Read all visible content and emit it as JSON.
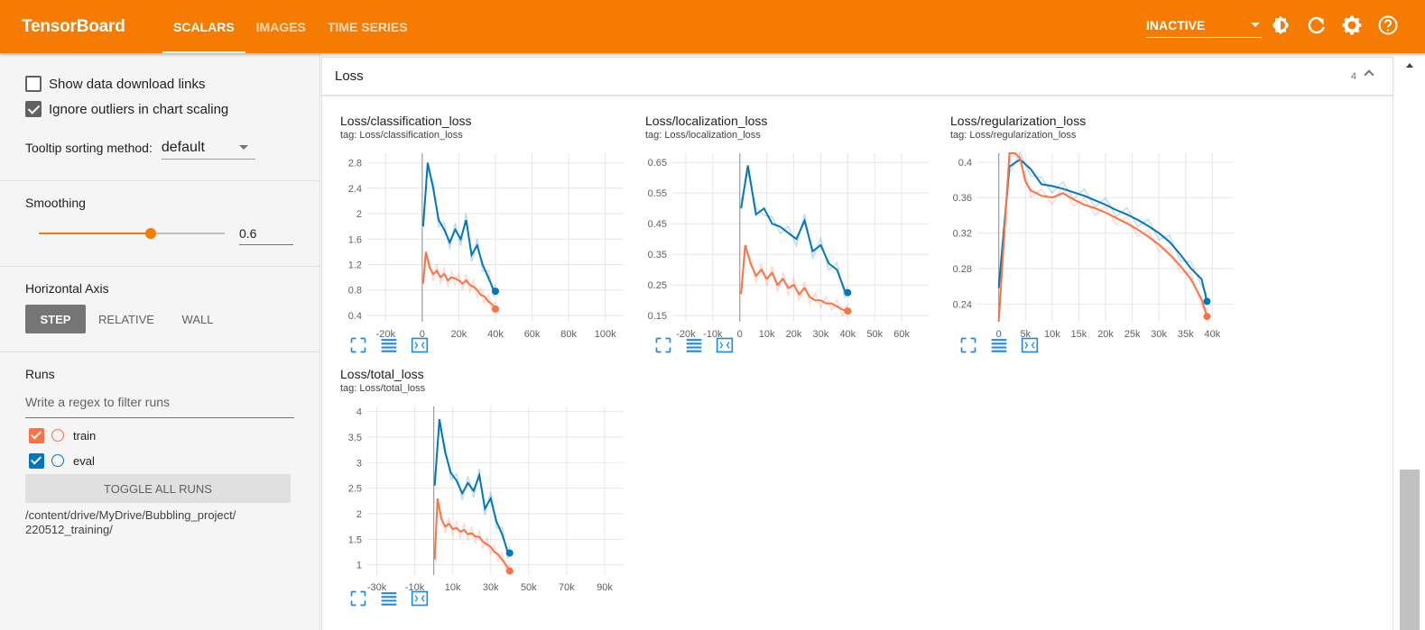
{
  "app": {
    "title": "TensorBoard",
    "tabs": [
      {
        "label": "SCALARS",
        "active": true
      },
      {
        "label": "IMAGES",
        "active": false
      },
      {
        "label": "TIME SERIES",
        "active": false
      }
    ],
    "status_select": "INACTIVE",
    "accent_color": "#f57c00"
  },
  "sidebar": {
    "show_download_links": {
      "label": "Show data download links",
      "checked": false
    },
    "ignore_outliers": {
      "label": "Ignore outliers in chart scaling",
      "checked": true
    },
    "tooltip_sorting": {
      "label": "Tooltip sorting method:",
      "value": "default"
    },
    "smoothing": {
      "label": "Smoothing",
      "value": "0.6",
      "fraction": 0.6
    },
    "horizontal_axis": {
      "label": "Horizontal Axis",
      "options": [
        "STEP",
        "RELATIVE",
        "WALL"
      ],
      "selected": "STEP"
    },
    "runs": {
      "label": "Runs",
      "filter_placeholder": "Write a regex to filter runs",
      "items": [
        {
          "name": "train",
          "checked": true,
          "color": "#ff7043"
        },
        {
          "name": "eval",
          "checked": true,
          "color": "#0077bb"
        }
      ],
      "toggle_label": "TOGGLE ALL RUNS",
      "logdir": "/content/drive/MyDrive/Bubbling_project/\n220512_training/"
    }
  },
  "group": {
    "name": "Loss",
    "count": "4"
  },
  "chart_data": [
    {
      "type": "line",
      "title": "Loss/classification_loss",
      "tag": "tag: Loss/classification_loss",
      "xlim": [
        -30000,
        110000
      ],
      "ylim": [
        0.3,
        2.95
      ],
      "xticks": [
        -20000,
        0,
        20000,
        40000,
        60000,
        80000,
        100000
      ],
      "xtick_labels": [
        "-20k",
        "0",
        "20k",
        "40k",
        "60k",
        "80k",
        "100k"
      ],
      "yticks": [
        0.4,
        0.8,
        1.2,
        1.6,
        2,
        2.4,
        2.8
      ],
      "ytick_labels": [
        "0.4",
        "0.8",
        "1.2",
        "1.6",
        "2",
        "2.4",
        "2.8"
      ],
      "series": [
        {
          "name": "eval",
          "color": "#0077bb",
          "x": [
            500,
            3000,
            6000,
            9000,
            12000,
            15000,
            18000,
            21000,
            24000,
            27000,
            30000,
            33000,
            36000,
            39000,
            40000
          ],
          "y": [
            1.8,
            2.8,
            2.4,
            1.9,
            1.75,
            1.55,
            1.75,
            1.6,
            1.9,
            1.35,
            1.5,
            1.2,
            1.0,
            0.8,
            0.78
          ]
        },
        {
          "name": "train",
          "color": "#ff7043",
          "x": [
            500,
            2000,
            4000,
            6000,
            8000,
            10000,
            12000,
            14000,
            16000,
            18000,
            20000,
            22000,
            24000,
            26000,
            28000,
            30000,
            32000,
            34000,
            36000,
            38000,
            40000
          ],
          "y": [
            0.9,
            1.4,
            1.15,
            1.05,
            1.1,
            1.0,
            1.05,
            0.95,
            1.0,
            0.98,
            0.95,
            0.9,
            0.95,
            0.88,
            0.85,
            0.8,
            0.72,
            0.7,
            0.62,
            0.58,
            0.5
          ]
        }
      ]
    },
    {
      "type": "line",
      "title": "Loss/localization_loss",
      "tag": "tag: Loss/localization_loss",
      "xlim": [
        -25000,
        70000
      ],
      "ylim": [
        0.13,
        0.68
      ],
      "xticks": [
        -20000,
        -10000,
        0,
        10000,
        20000,
        30000,
        40000,
        50000,
        60000
      ],
      "xtick_labels": [
        "-20k",
        "-10k",
        "0",
        "10k",
        "20k",
        "30k",
        "40k",
        "50k",
        "60k"
      ],
      "yticks": [
        0.15,
        0.25,
        0.35,
        0.45,
        0.55,
        0.65
      ],
      "ytick_labels": [
        "0.15",
        "0.25",
        "0.35",
        "0.45",
        "0.55",
        "0.65"
      ],
      "series": [
        {
          "name": "eval",
          "color": "#0077bb",
          "x": [
            500,
            3000,
            6000,
            9000,
            12000,
            15000,
            18000,
            21000,
            24000,
            27000,
            30000,
            33000,
            36000,
            39000,
            40000
          ],
          "y": [
            0.5,
            0.64,
            0.48,
            0.5,
            0.45,
            0.44,
            0.42,
            0.4,
            0.46,
            0.36,
            0.38,
            0.32,
            0.3,
            0.23,
            0.225
          ]
        },
        {
          "name": "train",
          "color": "#ff7043",
          "x": [
            500,
            2000,
            4000,
            6000,
            8000,
            10000,
            12000,
            14000,
            16000,
            18000,
            20000,
            22000,
            24000,
            26000,
            28000,
            30000,
            32000,
            34000,
            36000,
            38000,
            40000
          ],
          "y": [
            0.22,
            0.38,
            0.32,
            0.28,
            0.3,
            0.27,
            0.29,
            0.25,
            0.27,
            0.24,
            0.25,
            0.22,
            0.24,
            0.21,
            0.2,
            0.2,
            0.19,
            0.19,
            0.18,
            0.17,
            0.165
          ]
        }
      ]
    },
    {
      "type": "line",
      "title": "Loss/regularization_loss",
      "tag": "tag: Loss/regularization_loss",
      "xlim": [
        -4000,
        44000
      ],
      "ylim": [
        0.22,
        0.41
      ],
      "xticks": [
        0,
        5000,
        10000,
        15000,
        20000,
        25000,
        30000,
        35000,
        40000
      ],
      "xtick_labels": [
        "0",
        "5k",
        "10k",
        "15k",
        "20k",
        "25k",
        "30k",
        "35k",
        "40k"
      ],
      "yticks": [
        0.24,
        0.28,
        0.32,
        0.36,
        0.4
      ],
      "ytick_labels": [
        "0.24",
        "0.28",
        "0.32",
        "0.36",
        "0.4"
      ],
      "series": [
        {
          "name": "eval",
          "color": "#0077bb",
          "x": [
            0,
            2000,
            4000,
            6000,
            8000,
            10000,
            12000,
            14000,
            16000,
            18000,
            20000,
            22000,
            24000,
            26000,
            28000,
            30000,
            32000,
            34000,
            36000,
            38000,
            39000
          ],
          "y": [
            0.258,
            0.395,
            0.403,
            0.392,
            0.375,
            0.373,
            0.37,
            0.366,
            0.362,
            0.357,
            0.352,
            0.346,
            0.341,
            0.335,
            0.328,
            0.32,
            0.31,
            0.296,
            0.28,
            0.268,
            0.243
          ]
        },
        {
          "name": "train",
          "color": "#ff7043",
          "x": [
            0,
            2000,
            3000,
            4000,
            5000,
            6000,
            8000,
            10000,
            12000,
            14000,
            16000,
            18000,
            20000,
            22000,
            24000,
            26000,
            28000,
            30000,
            32000,
            34000,
            36000,
            38000,
            39000
          ],
          "y": [
            0.22,
            0.41,
            0.41,
            0.405,
            0.378,
            0.368,
            0.362,
            0.36,
            0.365,
            0.358,
            0.352,
            0.348,
            0.343,
            0.337,
            0.331,
            0.324,
            0.316,
            0.307,
            0.296,
            0.283,
            0.268,
            0.245,
            0.226
          ]
        }
      ]
    },
    {
      "type": "line",
      "title": "Loss/total_loss",
      "tag": "tag: Loss/total_loss",
      "xlim": [
        -35000,
        100000
      ],
      "ylim": [
        0.8,
        4.1
      ],
      "xticks": [
        -30000,
        -10000,
        10000,
        30000,
        50000,
        70000,
        90000
      ],
      "xtick_labels": [
        "-30k",
        "-10k",
        "10k",
        "30k",
        "50k",
        "70k",
        "90k"
      ],
      "yticks": [
        1,
        1.5,
        2,
        2.5,
        3,
        3.5,
        4
      ],
      "ytick_labels": [
        "1",
        "1.5",
        "2",
        "2.5",
        "3",
        "3.5",
        "4"
      ],
      "series": [
        {
          "name": "eval",
          "color": "#0077bb",
          "x": [
            500,
            3000,
            6000,
            9000,
            12000,
            15000,
            18000,
            21000,
            24000,
            27000,
            30000,
            33000,
            36000,
            39000,
            40000
          ],
          "y": [
            2.55,
            3.85,
            3.2,
            2.8,
            2.65,
            2.4,
            2.6,
            2.45,
            2.75,
            2.1,
            2.3,
            1.85,
            1.6,
            1.25,
            1.23
          ]
        },
        {
          "name": "train",
          "color": "#ff7043",
          "x": [
            500,
            2000,
            4000,
            6000,
            8000,
            10000,
            12000,
            14000,
            16000,
            18000,
            20000,
            22000,
            24000,
            26000,
            28000,
            30000,
            32000,
            34000,
            36000,
            38000,
            40000
          ],
          "y": [
            1.1,
            2.3,
            1.9,
            1.75,
            1.8,
            1.7,
            1.72,
            1.65,
            1.68,
            1.6,
            1.62,
            1.55,
            1.55,
            1.45,
            1.4,
            1.35,
            1.25,
            1.2,
            1.1,
            1.0,
            0.88
          ]
        }
      ]
    }
  ]
}
